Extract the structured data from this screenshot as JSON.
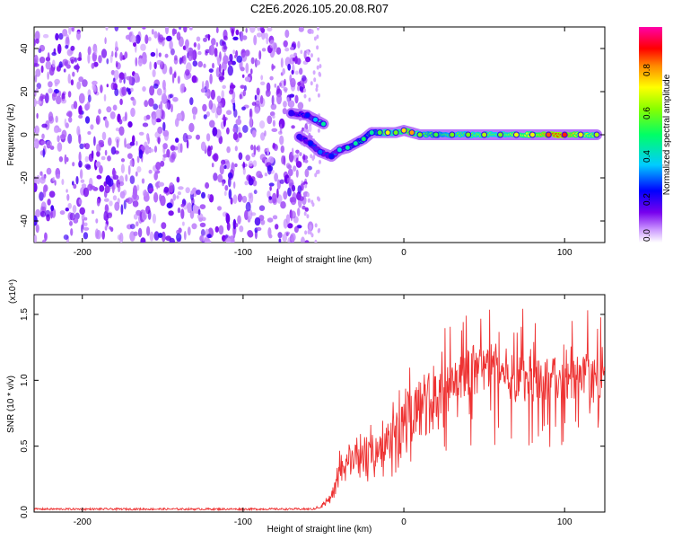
{
  "title": "C2E6.2026.105.20.08.R07",
  "chart_data": [
    {
      "type": "heatmap",
      "xlabel": "Height of straight line (km)",
      "ylabel": "Frequency (Hz)",
      "xlim": [
        -230,
        125
      ],
      "ylim": [
        -50,
        50
      ],
      "x_ticks": [
        -200,
        -100,
        0,
        100
      ],
      "y_ticks": [
        -40,
        -20,
        0,
        20,
        40
      ],
      "colorbar": {
        "label": "Normalized spectral amplitude",
        "range": [
          0,
          1
        ],
        "ticks": [
          "0.0",
          "0.2",
          "0.4",
          "0.6",
          "0.8"
        ],
        "colors": [
          "#ffffff",
          "#7700ee",
          "#0000ff",
          "#00ffff",
          "#00ff00",
          "#ffff00",
          "#ff0000",
          "#ff00aa"
        ]
      },
      "noise_region": {
        "x": [
          -230,
          -58
        ],
        "y": [
          -50,
          50
        ],
        "amplitude_range": [
          0.02,
          0.2
        ]
      },
      "signal_track": [
        {
          "x": -70,
          "y": 10,
          "amp": 0.2
        },
        {
          "x": -60,
          "y": 9,
          "amp": 0.25
        },
        {
          "x": -55,
          "y": 7,
          "amp": 0.35
        },
        {
          "x": -50,
          "y": 5,
          "amp": 0.45
        },
        {
          "x": -65,
          "y": -1,
          "amp": 0.2
        },
        {
          "x": -58,
          "y": -4,
          "amp": 0.25
        },
        {
          "x": -52,
          "y": -8,
          "amp": 0.3
        },
        {
          "x": -45,
          "y": -10,
          "amp": 0.25
        },
        {
          "x": -40,
          "y": -7,
          "amp": 0.4
        },
        {
          "x": -35,
          "y": -6,
          "amp": 0.45
        },
        {
          "x": -30,
          "y": -4,
          "amp": 0.45
        },
        {
          "x": -25,
          "y": -2,
          "amp": 0.5
        },
        {
          "x": -20,
          "y": 1,
          "amp": 0.45
        },
        {
          "x": -15,
          "y": 1,
          "amp": 0.55
        },
        {
          "x": -10,
          "y": 1,
          "amp": 0.7
        },
        {
          "x": -5,
          "y": 1,
          "amp": 0.6
        },
        {
          "x": 0,
          "y": 2,
          "amp": 0.75
        },
        {
          "x": 5,
          "y": 1,
          "amp": 0.8
        },
        {
          "x": 10,
          "y": 0,
          "amp": 0.6
        },
        {
          "x": 20,
          "y": 0,
          "amp": 0.55
        },
        {
          "x": 30,
          "y": 0,
          "amp": 0.6
        },
        {
          "x": 40,
          "y": 0,
          "amp": 0.6
        },
        {
          "x": 50,
          "y": 0,
          "amp": 0.65
        },
        {
          "x": 60,
          "y": 0,
          "amp": 0.6
        },
        {
          "x": 70,
          "y": 0,
          "amp": 0.7
        },
        {
          "x": 80,
          "y": 0,
          "amp": 0.7
        },
        {
          "x": 90,
          "y": 0,
          "amp": 0.85
        },
        {
          "x": 100,
          "y": 0,
          "amp": 0.88
        },
        {
          "x": 110,
          "y": 0,
          "amp": 0.7
        },
        {
          "x": 120,
          "y": 0,
          "amp": 0.65
        }
      ]
    },
    {
      "type": "line",
      "xlabel": "Height of straight line (km)",
      "ylabel": "SNR (10 * v/v)",
      "y_scale_note": "(x10⁴)",
      "xlim": [
        -230,
        125
      ],
      "ylim": [
        0,
        1.65
      ],
      "x_ticks": [
        -200,
        -100,
        0,
        100
      ],
      "y_ticks": [
        "0.0",
        "0.5",
        "1.0",
        "1.5"
      ],
      "series": [
        {
          "color": "#ee3333",
          "x": [
            -230,
            -200,
            -150,
            -100,
            -60,
            -52,
            -45,
            -42,
            -40,
            -38,
            -35,
            -30,
            -25,
            -20,
            -15,
            -10,
            -5,
            0,
            5,
            10,
            15,
            20,
            25,
            30,
            35,
            40,
            45,
            50,
            55,
            60,
            65,
            70,
            75,
            80,
            85,
            90,
            95,
            100,
            105,
            110,
            115,
            120,
            125
          ],
          "y": [
            0.02,
            0.02,
            0.02,
            0.02,
            0.02,
            0.04,
            0.12,
            0.2,
            0.3,
            0.35,
            0.4,
            0.4,
            0.4,
            0.45,
            0.5,
            0.55,
            0.62,
            0.72,
            0.75,
            0.8,
            0.82,
            0.85,
            0.9,
            0.95,
            1.0,
            1.05,
            1.05,
            1.1,
            1.1,
            1.08,
            1.05,
            1.0,
            1.0,
            1.02,
            1.0,
            1.0,
            1.0,
            0.98,
            1.0,
            1.02,
            1.0,
            1.0,
            1.1
          ]
        }
      ]
    }
  ]
}
